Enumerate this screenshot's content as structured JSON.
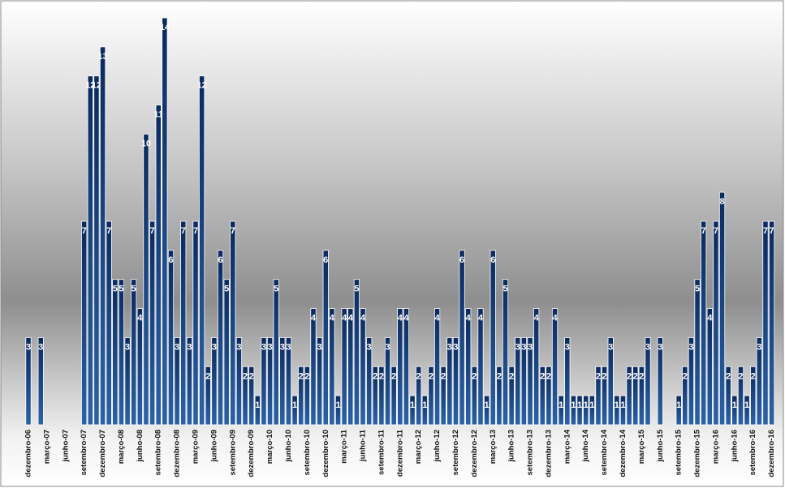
{
  "chart_data": {
    "type": "bar",
    "categories": [
      "dezembro-06",
      null,
      null,
      "março-07",
      null,
      null,
      "junho-07",
      null,
      null,
      "setembro-07",
      null,
      null,
      "dezembro-07",
      null,
      null,
      "março-08",
      null,
      null,
      "junho-08",
      null,
      null,
      "setembro-08",
      null,
      null,
      "dezembro-08",
      null,
      null,
      "março-09",
      null,
      null,
      "junho-09",
      null,
      null,
      "setembro-09",
      null,
      null,
      "dezembro-09",
      null,
      null,
      "março-10",
      null,
      null,
      "junho-10",
      null,
      null,
      "setembro-10",
      null,
      null,
      "dezembro-10",
      null,
      null,
      "março-11",
      null,
      null,
      "junho-11",
      null,
      null,
      "setembro-11",
      null,
      null,
      "dezembro-11",
      null,
      null,
      "março-12",
      null,
      null,
      "junho-12",
      null,
      null,
      "setembro-12",
      null,
      null,
      "dezembro-12",
      null,
      null,
      "março-13",
      null,
      null,
      "junho-13",
      null,
      null,
      "setembro-13",
      null,
      null,
      "dezembro-13",
      null,
      null,
      "março-14",
      null,
      null,
      "junho-14",
      null,
      null,
      "setembro-14",
      null,
      null,
      "dezembro-14",
      null,
      null,
      "março-15",
      null,
      null,
      "junho-15",
      null,
      null,
      "setembro-15",
      null,
      null,
      "dezembro-15",
      null,
      null,
      "março-16",
      null,
      null,
      "junho-16",
      null,
      null,
      "setembro-16",
      null,
      null,
      "dezembro-16"
    ],
    "values": [
      3,
      0,
      3,
      0,
      0,
      0,
      0,
      0,
      0,
      7,
      12,
      12,
      13,
      7,
      5,
      5,
      3,
      5,
      4,
      10,
      7,
      11,
      14,
      6,
      3,
      7,
      3,
      7,
      12,
      2,
      3,
      6,
      5,
      7,
      3,
      2,
      2,
      1,
      3,
      3,
      5,
      3,
      3,
      1,
      2,
      2,
      4,
      3,
      6,
      4,
      1,
      4,
      4,
      5,
      4,
      3,
      2,
      2,
      3,
      2,
      4,
      4,
      1,
      2,
      1,
      2,
      4,
      2,
      3,
      3,
      6,
      4,
      2,
      4,
      1,
      6,
      2,
      5,
      2,
      3,
      3,
      3,
      4,
      2,
      2,
      4,
      1,
      3,
      1,
      1,
      1,
      1,
      2,
      2,
      3,
      1,
      1,
      2,
      2,
      2,
      3,
      0,
      3,
      0,
      0,
      1,
      2,
      3,
      5,
      7,
      4,
      7,
      8,
      2,
      1,
      2,
      1,
      2,
      3,
      7,
      7
    ],
    "color": "#123f7c",
    "ylim": [
      0,
      14
    ]
  }
}
